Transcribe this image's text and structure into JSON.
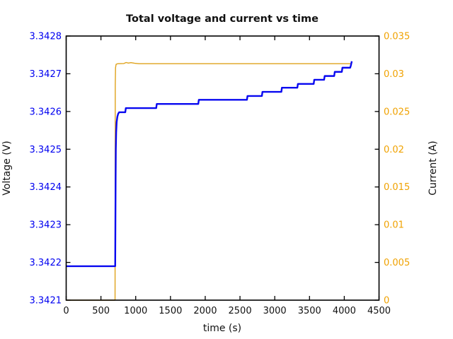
{
  "chart_data": {
    "type": "line",
    "title": "Total voltage and current vs time",
    "xlabel": "time (s)",
    "x_range": [
      0,
      4500
    ],
    "x_ticks": [
      {
        "v": 0,
        "label": "0"
      },
      {
        "v": 500,
        "label": "500"
      },
      {
        "v": 1000,
        "label": "1000"
      },
      {
        "v": 1500,
        "label": "1500"
      },
      {
        "v": 2000,
        "label": "2000"
      },
      {
        "v": 2500,
        "label": "2500"
      },
      {
        "v": 3000,
        "label": "3000"
      },
      {
        "v": 3500,
        "label": "3500"
      },
      {
        "v": 4000,
        "label": "4000"
      },
      {
        "v": 4500,
        "label": "4500"
      }
    ],
    "y_left": {
      "label": "Voltage (V)",
      "range": [
        3.3421,
        3.3428
      ],
      "color": "#0000f0",
      "ticks": [
        {
          "v": 3.3421,
          "label": "3.3421"
        },
        {
          "v": 3.3422,
          "label": "3.3422"
        },
        {
          "v": 3.3423,
          "label": "3.3423"
        },
        {
          "v": 3.3424,
          "label": "3.3424"
        },
        {
          "v": 3.3425,
          "label": "3.3425"
        },
        {
          "v": 3.3426,
          "label": "3.3426"
        },
        {
          "v": 3.3427,
          "label": "3.3427"
        },
        {
          "v": 3.3428,
          "label": "3.3428"
        }
      ]
    },
    "y_right": {
      "label": "Current (A)",
      "range": [
        0,
        0.035
      ],
      "color": "#f0a202",
      "ticks": [
        {
          "v": 0,
          "label": "0"
        },
        {
          "v": 0.005,
          "label": "0.005"
        },
        {
          "v": 0.01,
          "label": "0.01"
        },
        {
          "v": 0.015,
          "label": "0.015"
        },
        {
          "v": 0.02,
          "label": "0.02"
        },
        {
          "v": 0.025,
          "label": "0.025"
        },
        {
          "v": 0.03,
          "label": "0.03"
        },
        {
          "v": 0.035,
          "label": "0.035"
        }
      ]
    },
    "grid": false,
    "legend": "none",
    "frame": {
      "color": "#000000",
      "tick_length": 6
    },
    "series": [
      {
        "name": "current",
        "axis": "right",
        "color": "#dfa21b",
        "width": 1.4,
        "points": [
          [
            0,
            0
          ],
          [
            703,
            0
          ],
          [
            706,
            0.0285
          ],
          [
            710,
            0.0308
          ],
          [
            718,
            0.03125
          ],
          [
            740,
            0.03133
          ],
          [
            830,
            0.03136
          ],
          [
            862,
            0.03149
          ],
          [
            895,
            0.03141
          ],
          [
            932,
            0.03147
          ],
          [
            985,
            0.03139
          ],
          [
            1045,
            0.03133
          ],
          [
            2500,
            0.03133
          ],
          [
            4110,
            0.03133
          ]
        ]
      },
      {
        "name": "voltage",
        "axis": "left",
        "color": "#0808f0",
        "width": 2.4,
        "points": [
          [
            0,
            3.34219
          ],
          [
            705,
            3.34219
          ],
          [
            708,
            3.3423
          ],
          [
            711,
            3.34242
          ],
          [
            714,
            3.3425
          ],
          [
            719,
            3.342545
          ],
          [
            726,
            3.342572
          ],
          [
            736,
            3.342586
          ],
          [
            748,
            3.342594
          ],
          [
            762,
            3.342598
          ],
          [
            850,
            3.342598
          ],
          [
            858,
            3.342609
          ],
          [
            1295,
            3.342609
          ],
          [
            1303,
            3.34262
          ],
          [
            1900,
            3.34262
          ],
          [
            1908,
            3.342631
          ],
          [
            2600,
            3.342631
          ],
          [
            2608,
            3.342641
          ],
          [
            2815,
            3.342641
          ],
          [
            2823,
            3.342652
          ],
          [
            3095,
            3.342652
          ],
          [
            3103,
            3.342663
          ],
          [
            3325,
            3.342663
          ],
          [
            3333,
            3.342673
          ],
          [
            3560,
            3.342673
          ],
          [
            3568,
            3.342684
          ],
          [
            3710,
            3.342684
          ],
          [
            3718,
            3.342694
          ],
          [
            3855,
            3.342694
          ],
          [
            3863,
            3.342705
          ],
          [
            3965,
            3.342705
          ],
          [
            3973,
            3.342716
          ],
          [
            4085,
            3.342716
          ],
          [
            4095,
            3.342722
          ],
          [
            4108,
            3.342733
          ]
        ]
      }
    ]
  }
}
